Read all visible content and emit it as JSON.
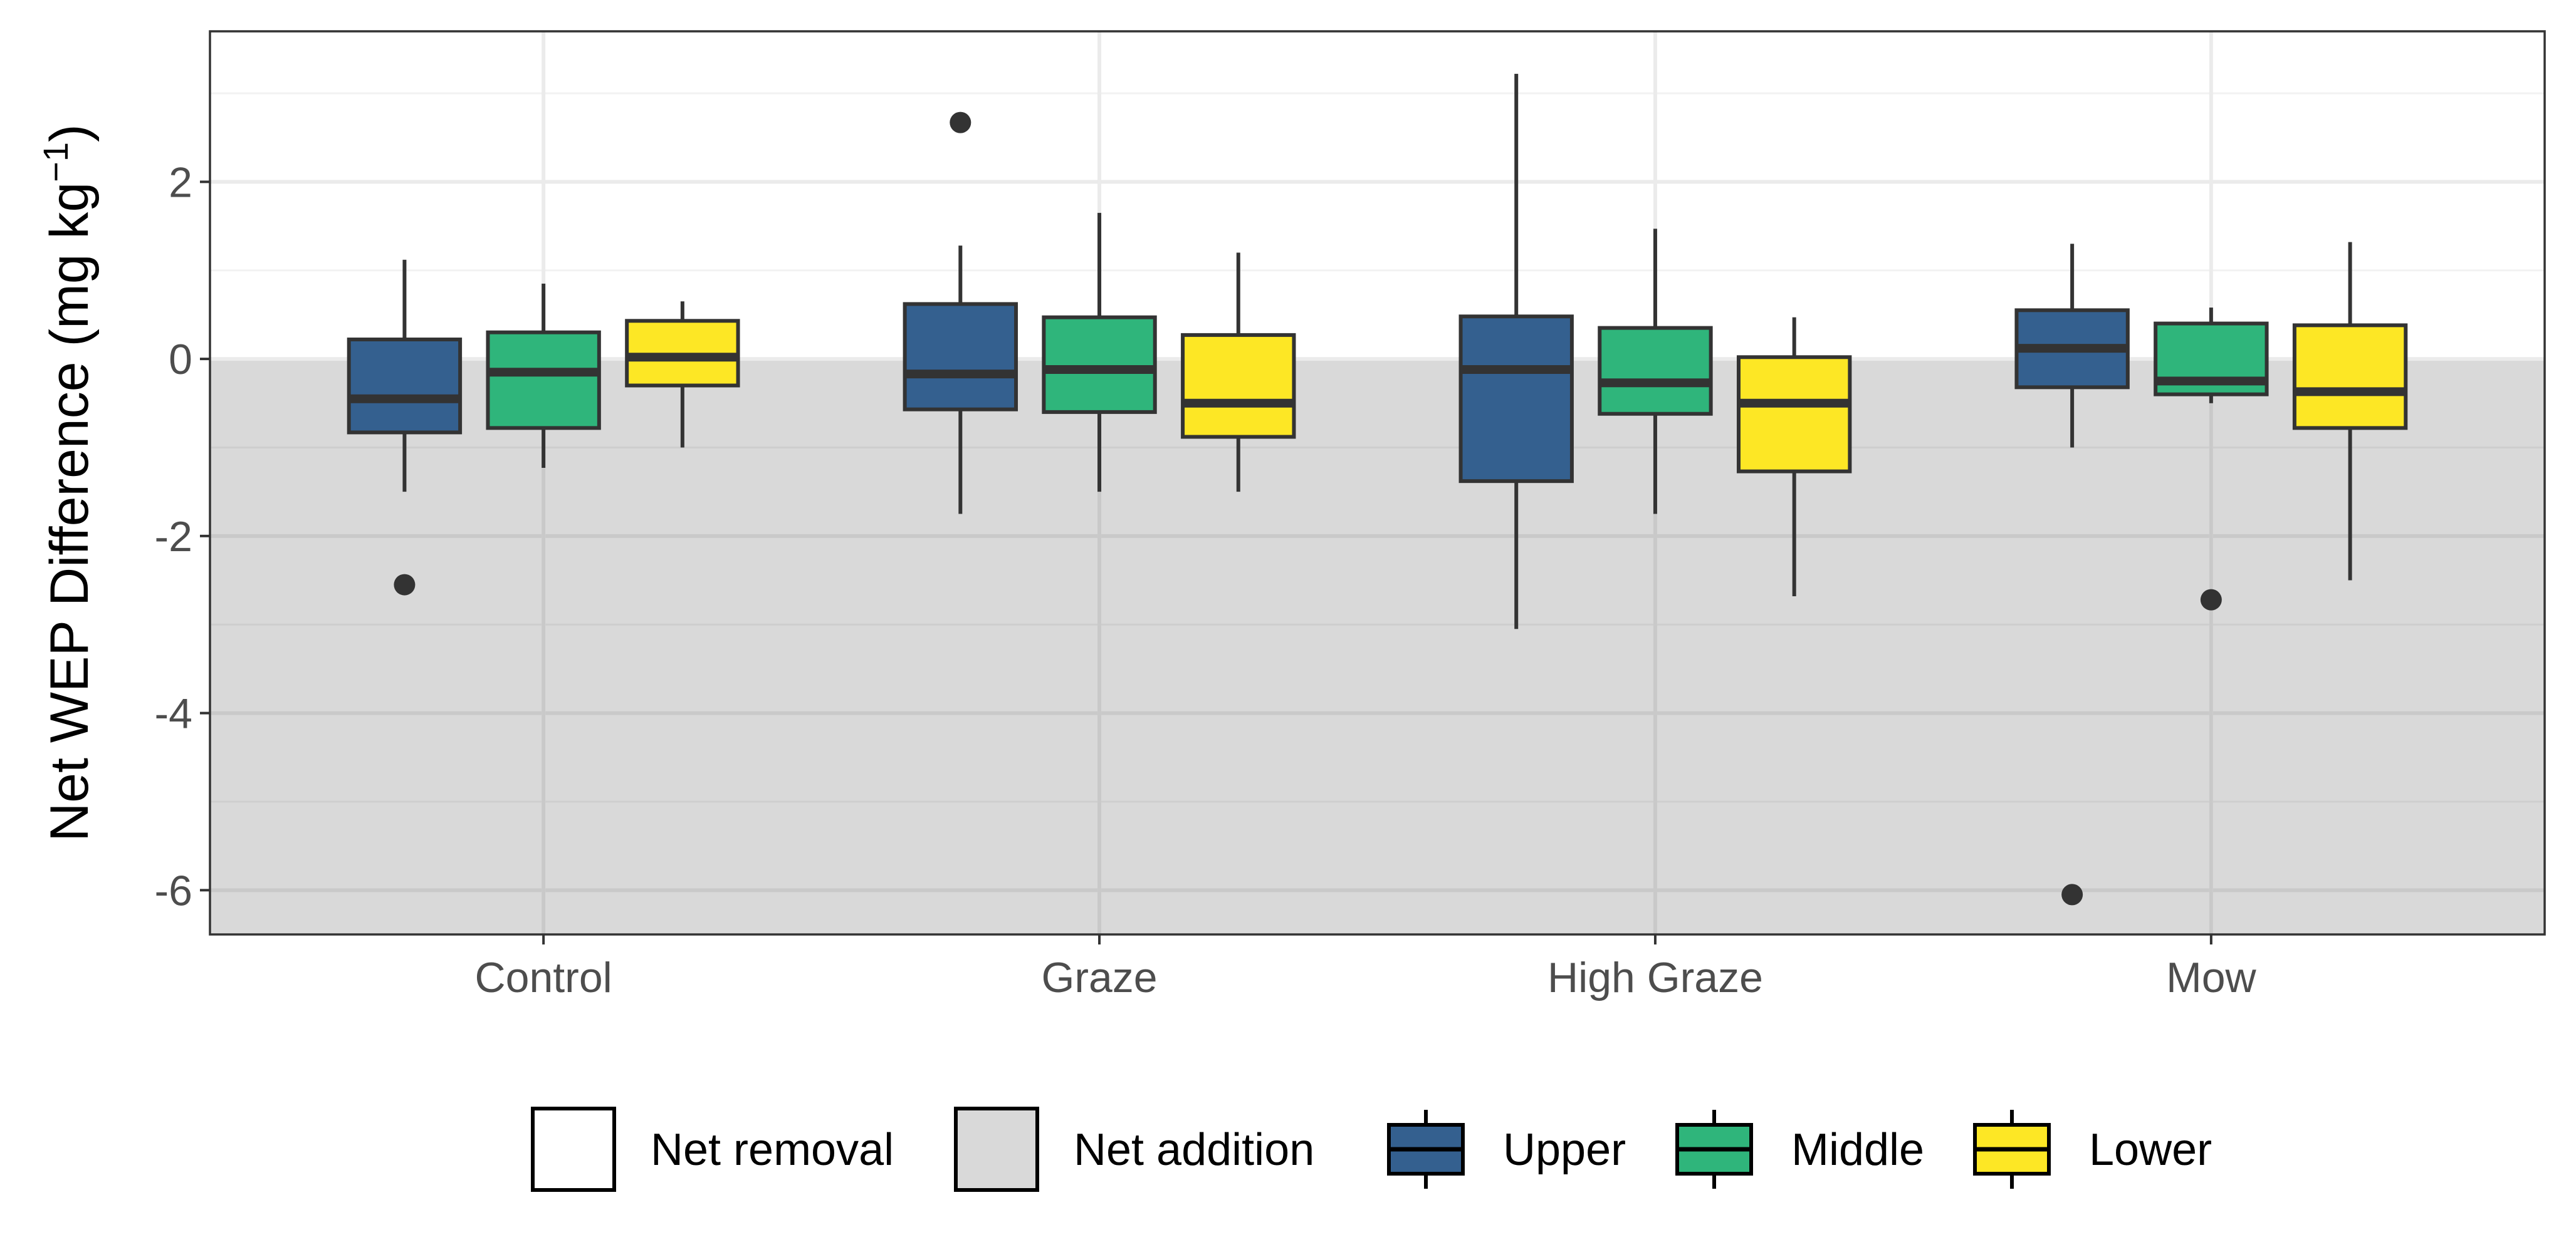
{
  "chart_data": {
    "type": "boxplot",
    "ylabel": {
      "main": "Net WEP Difference (mg kg",
      "sup": "−1",
      "close": ")"
    },
    "xlabel": "",
    "ylim": [
      -6.5,
      3.7
    ],
    "yticks": [
      {
        "value": 2,
        "label": "2"
      },
      {
        "value": 0,
        "label": "0"
      },
      {
        "value": -2,
        "label": "-2"
      },
      {
        "value": -4,
        "label": "-4"
      },
      {
        "value": -6,
        "label": "-6"
      }
    ],
    "grid": true,
    "shaded_region": {
      "from": -6.5,
      "to": 0,
      "color": "#d9d9d9"
    },
    "categories": [
      "Control",
      "Graze",
      "High Graze",
      "Mow"
    ],
    "series": [
      {
        "name": "Upper",
        "color": "#34608f",
        "boxes": [
          {
            "min": -1.5,
            "q1": -0.83,
            "median": -0.45,
            "q3": 0.22,
            "max": 1.12,
            "outliers": [
              -2.55
            ]
          },
          {
            "min": -1.75,
            "q1": -0.57,
            "median": -0.17,
            "q3": 0.62,
            "max": 1.28,
            "outliers": [
              2.67
            ]
          },
          {
            "min": -3.05,
            "q1": -1.38,
            "median": -0.12,
            "q3": 0.48,
            "max": 3.22,
            "outliers": []
          },
          {
            "min": -1.0,
            "q1": -0.32,
            "median": 0.12,
            "q3": 0.55,
            "max": 1.3,
            "outliers": [
              -6.05
            ]
          }
        ]
      },
      {
        "name": "Middle",
        "color": "#2fb57b",
        "boxes": [
          {
            "min": -1.23,
            "q1": -0.78,
            "median": -0.15,
            "q3": 0.3,
            "max": 0.85,
            "outliers": []
          },
          {
            "min": -1.5,
            "q1": -0.6,
            "median": -0.12,
            "q3": 0.47,
            "max": 1.65,
            "outliers": []
          },
          {
            "min": -1.75,
            "q1": -0.62,
            "median": -0.27,
            "q3": 0.35,
            "max": 1.47,
            "outliers": []
          },
          {
            "min": -0.5,
            "q1": -0.4,
            "median": -0.25,
            "q3": 0.4,
            "max": 0.58,
            "outliers": [
              -2.72
            ]
          }
        ]
      },
      {
        "name": "Lower",
        "color": "#fde725",
        "boxes": [
          {
            "min": -1.0,
            "q1": -0.3,
            "median": 0.02,
            "q3": 0.43,
            "max": 0.65,
            "outliers": []
          },
          {
            "min": -1.5,
            "q1": -0.88,
            "median": -0.5,
            "q3": 0.27,
            "max": 1.2,
            "outliers": []
          },
          {
            "min": -2.68,
            "q1": -1.27,
            "median": -0.5,
            "q3": 0.02,
            "max": 0.47,
            "outliers": []
          },
          {
            "min": -2.5,
            "q1": -0.78,
            "median": -0.37,
            "q3": 0.38,
            "max": 1.32,
            "outliers": []
          }
        ]
      }
    ],
    "legend": {
      "position": "bottom",
      "items": [
        {
          "name": "Net removal",
          "swatch": "#ffffff",
          "kind": "fill"
        },
        {
          "name": "Net addition",
          "swatch": "#d9d9d9",
          "kind": "fill"
        },
        {
          "name": "Upper",
          "swatch": "#34608f",
          "kind": "box"
        },
        {
          "name": "Middle",
          "swatch": "#2fb57b",
          "kind": "box"
        },
        {
          "name": "Lower",
          "swatch": "#fde725",
          "kind": "box"
        }
      ]
    }
  }
}
